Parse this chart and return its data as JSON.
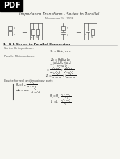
{
  "title": "Impedance Transform - Series to Parallel",
  "subtitle": "November 24, 2013",
  "section": "1   R-L Series to Parallel Conversion",
  "bg_color": "#f5f5f0",
  "pdf_label": "PDF"
}
